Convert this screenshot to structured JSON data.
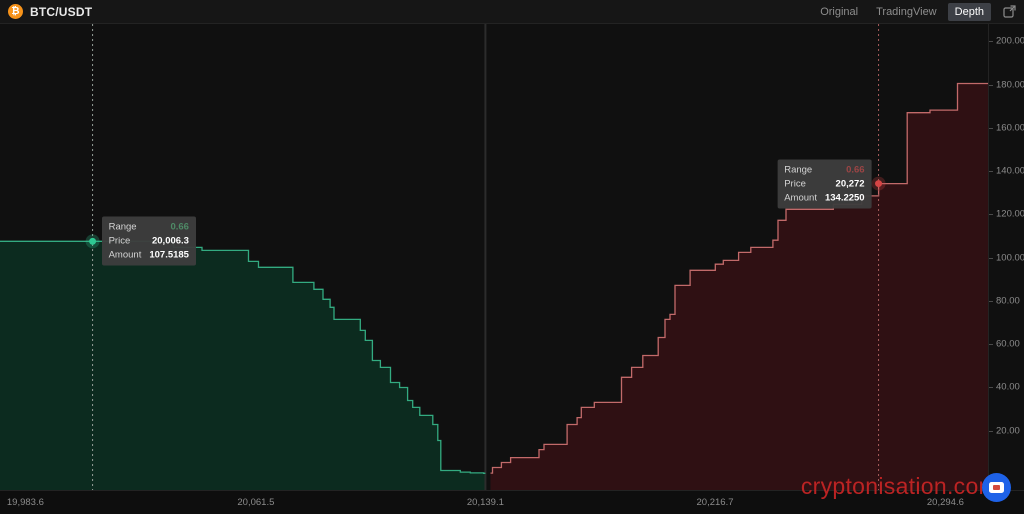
{
  "header": {
    "symbol": "BTC/USDT",
    "view_buttons": [
      {
        "label": "Original",
        "active": false
      },
      {
        "label": "TradingView",
        "active": false
      },
      {
        "label": "Depth",
        "active": true
      }
    ]
  },
  "icons": {
    "bitcoin": "₿",
    "expand": "external-link-arrow",
    "site_logo": "screen-in-circle"
  },
  "watermark": "cryptonisation.com",
  "colors": {
    "background": "#101010",
    "topbar_bg": "#161616",
    "accent_orange": "#f7931a",
    "bid_line": "#33ab81",
    "bid_fill": "#0c2b1f",
    "bid_dot": "#2ec992",
    "bid_guide": "#97a19a",
    "ask_line": "#c26a6a",
    "ask_fill": "#2f1013",
    "ask_dot": "#d64545",
    "ask_guide": "#a65b5b",
    "mid_line": "#2c2c2c",
    "axis_text": "#8c8c8c",
    "tooltip_bg": "#3d3d3d",
    "watermark_red": "#c92525",
    "active_button_bg": "#3d4046"
  },
  "tooltips": {
    "labels": [
      "Range",
      "Price",
      "Amount"
    ],
    "bid": {
      "range": "0.66",
      "price": "20,006.3",
      "amount": "107.5185"
    },
    "ask": {
      "range": "0.66",
      "price": "20,272",
      "amount": "134.2250"
    }
  },
  "chart_data": {
    "type": "area",
    "subtype": "market-depth-step",
    "xlim": [
      19975,
      20309
    ],
    "ylim": [
      -7.5,
      208
    ],
    "mid_price": 20139.1,
    "grid": false,
    "x_ticks": [
      {
        "value": 19983.6,
        "label": "19,983.6"
      },
      {
        "value": 20061.5,
        "label": "20,061.5"
      },
      {
        "value": 20139.1,
        "label": "20,139.1"
      },
      {
        "value": 20216.7,
        "label": "20,216.7"
      },
      {
        "value": 20294.6,
        "label": "20,294.6"
      }
    ],
    "y_ticks": [
      {
        "value": 20,
        "label": "20.00"
      },
      {
        "value": 40,
        "label": "40.00"
      },
      {
        "value": 60,
        "label": "60.00"
      },
      {
        "value": 80,
        "label": "80.00"
      },
      {
        "value": 100,
        "label": "100.00"
      },
      {
        "value": 120,
        "label": "120.00"
      },
      {
        "value": 140,
        "label": "140.00"
      },
      {
        "value": 160,
        "label": "160.00"
      },
      {
        "value": 180,
        "label": "180.00"
      },
      {
        "value": 200,
        "label": "200.00"
      }
    ],
    "series": [
      {
        "name": "bids",
        "points": [
          [
            19971.3,
            107.5
          ],
          [
            20033.7,
            104.7
          ],
          [
            20043.3,
            103.3
          ],
          [
            20059.0,
            98.2
          ],
          [
            20062.4,
            95.5
          ],
          [
            20074.0,
            88.5
          ],
          [
            20081.1,
            85.3
          ],
          [
            20084.2,
            80.7
          ],
          [
            20086.6,
            77.0
          ],
          [
            20087.9,
            71.4
          ],
          [
            20096.8,
            66.3
          ],
          [
            20098.5,
            61.7
          ],
          [
            20100.9,
            52.4
          ],
          [
            20103.6,
            49.2
          ],
          [
            20107.0,
            42.2
          ],
          [
            20110.1,
            39.9
          ],
          [
            20112.8,
            33.9
          ],
          [
            20114.5,
            30.7
          ],
          [
            20116.9,
            27.0
          ],
          [
            20121.3,
            22.8
          ],
          [
            20123.0,
            15.4
          ],
          [
            20124.0,
            1.5
          ],
          [
            20130.6,
            0.8
          ],
          [
            20134.0,
            0.4
          ],
          [
            20138.5,
            0.2
          ]
        ]
      },
      {
        "name": "asks",
        "points": [
          [
            20140.8,
            0.3
          ],
          [
            20141.5,
            2.9
          ],
          [
            20144.5,
            5.2
          ],
          [
            20147.6,
            7.5
          ],
          [
            20157.2,
            11.2
          ],
          [
            20158.9,
            13.6
          ],
          [
            20166.7,
            22.8
          ],
          [
            20170.1,
            26.0
          ],
          [
            20171.5,
            30.7
          ],
          [
            20175.9,
            33.0
          ],
          [
            20185.1,
            44.6
          ],
          [
            20188.5,
            49.2
          ],
          [
            20192.3,
            54.7
          ],
          [
            20197.5,
            63.0
          ],
          [
            20199.8,
            71.4
          ],
          [
            20201.5,
            73.7
          ],
          [
            20203.2,
            87.1
          ],
          [
            20208.3,
            94.1
          ],
          [
            20216.8,
            96.9
          ],
          [
            20219.5,
            98.7
          ],
          [
            20224.7,
            102.4
          ],
          [
            20228.8,
            104.7
          ],
          [
            20236.3,
            108.0
          ],
          [
            20238.0,
            117.2
          ],
          [
            20240.7,
            122.3
          ],
          [
            20256.7,
            124.6
          ],
          [
            20266.3,
            128.5
          ],
          [
            20272.0,
            134.2
          ],
          [
            20281.7,
            167.0
          ],
          [
            20289.4,
            168.2
          ],
          [
            20298.7,
            180.5
          ]
        ]
      }
    ],
    "markers": [
      {
        "series": "bids",
        "price": 20006.3,
        "amount": 107.5
      },
      {
        "series": "asks",
        "price": 20272.0,
        "amount": 134.2
      }
    ]
  }
}
